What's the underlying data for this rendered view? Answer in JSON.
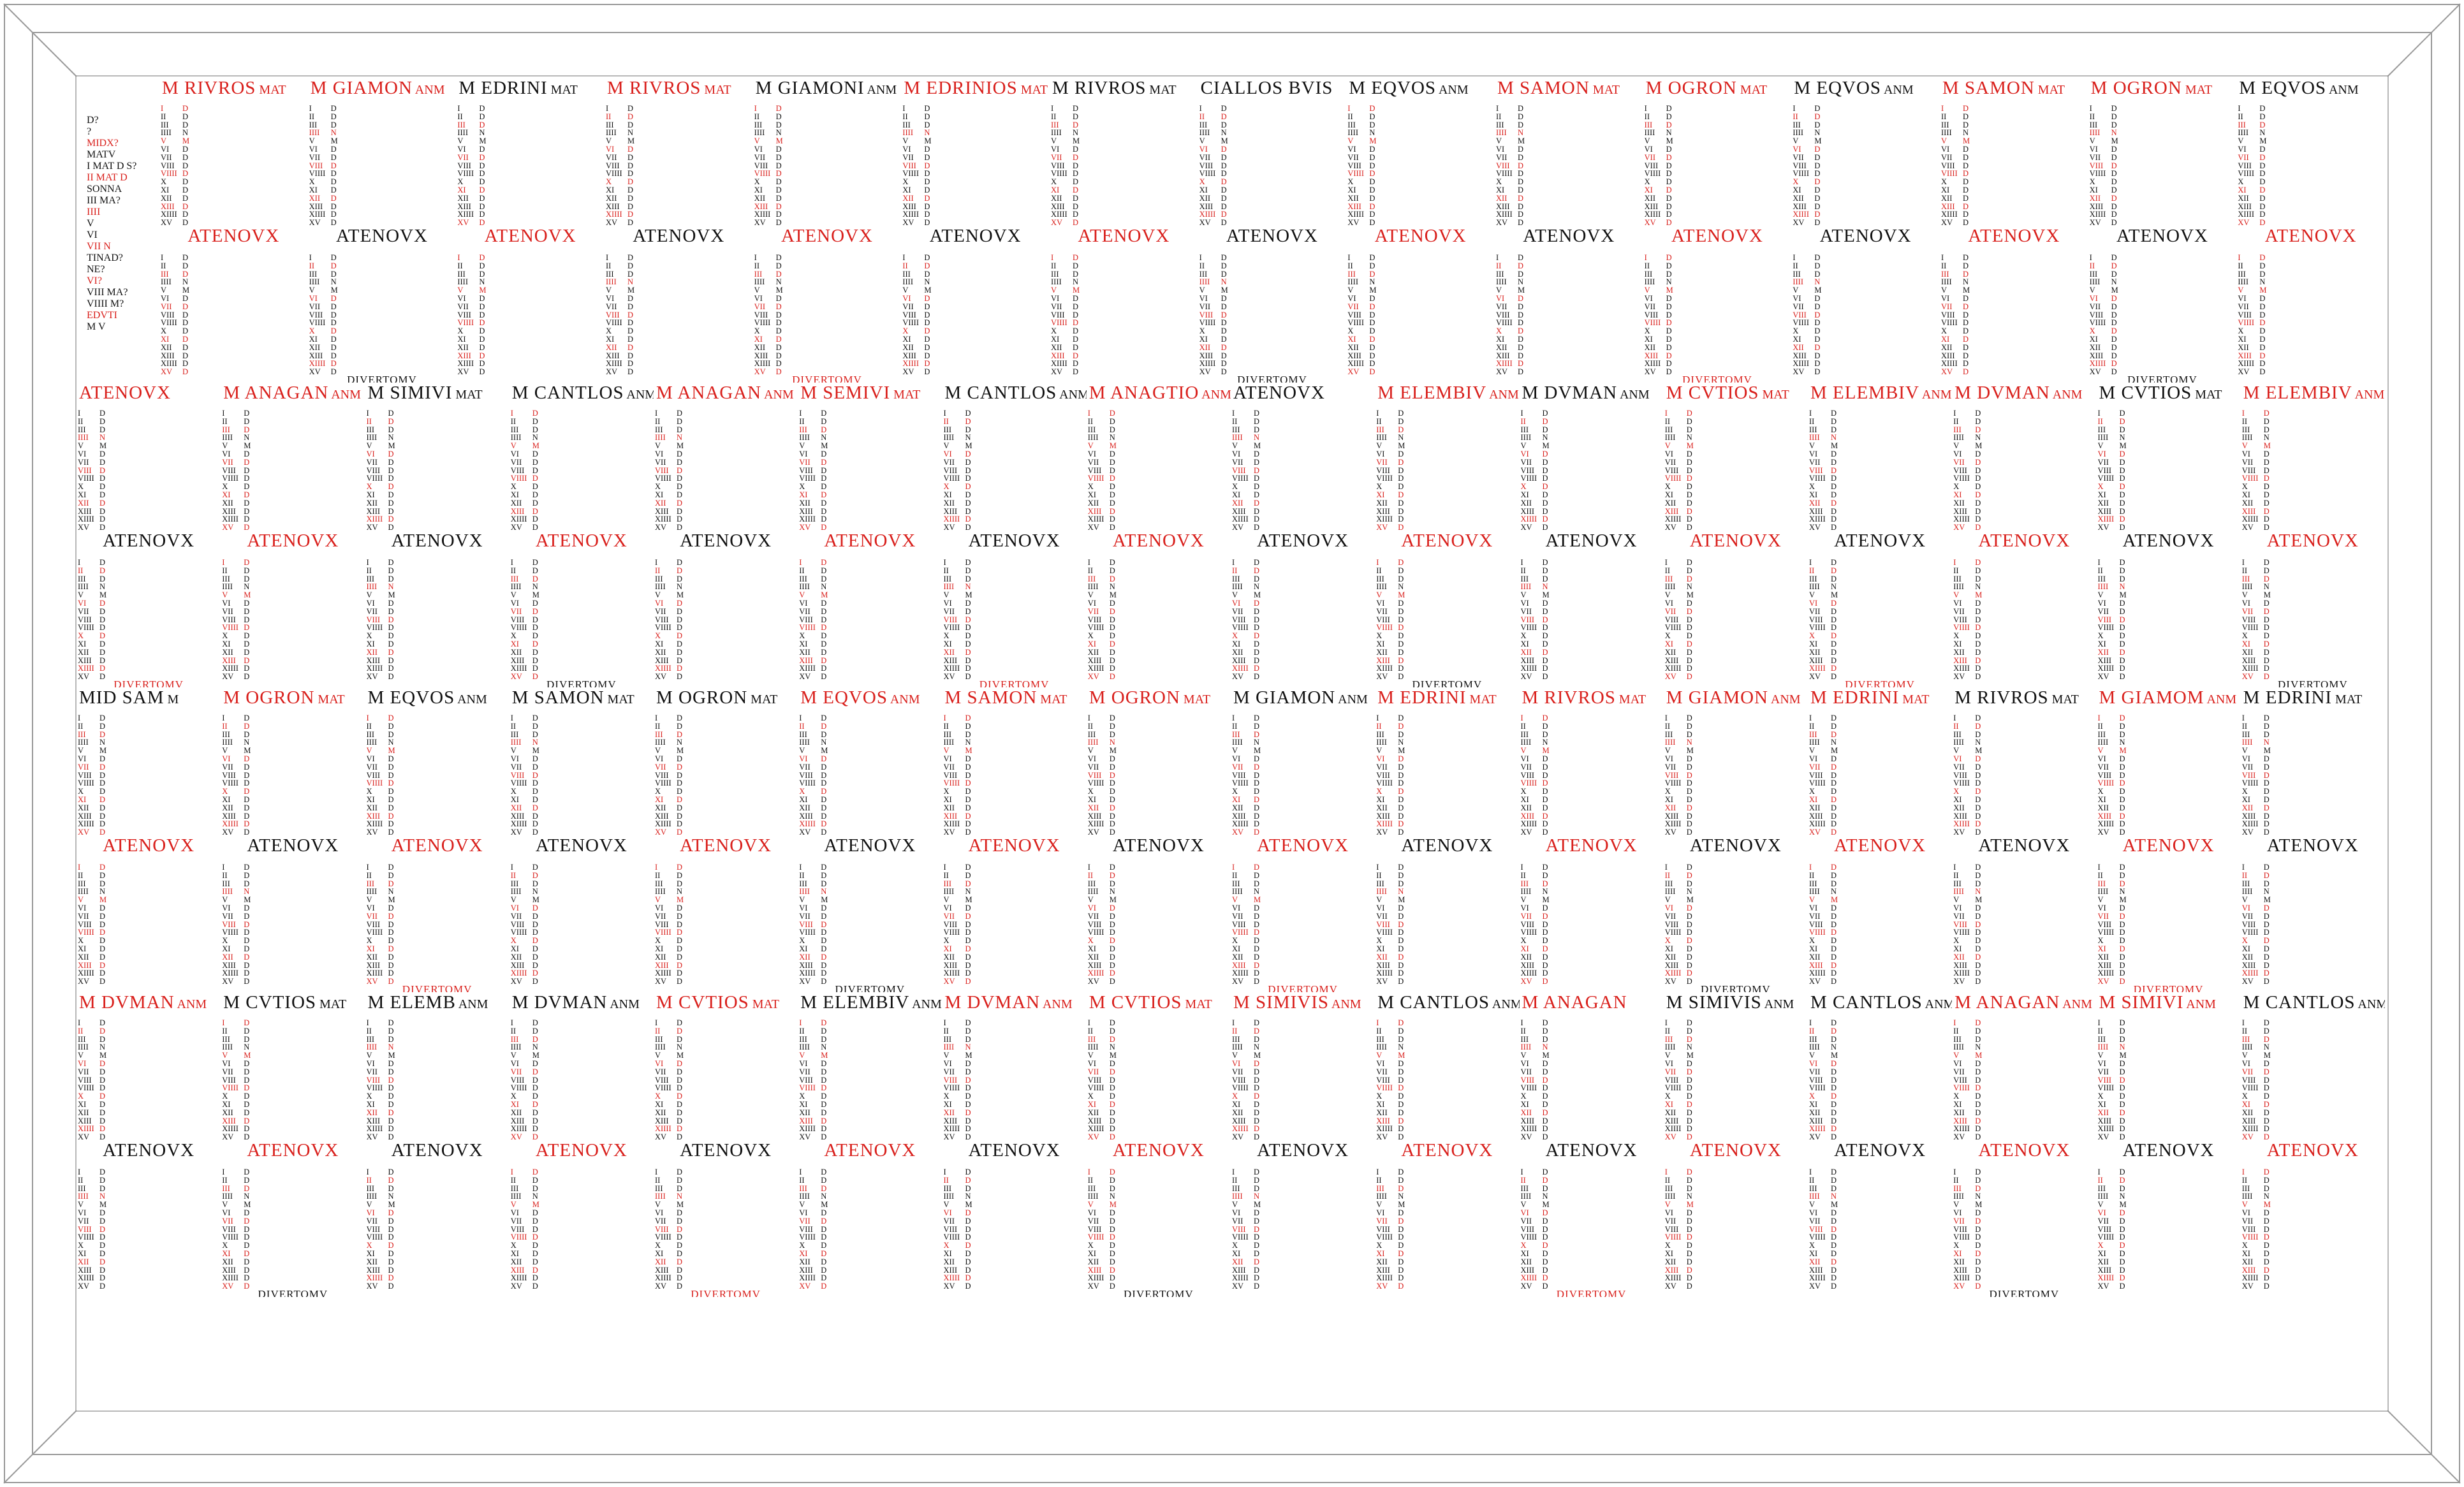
{
  "intro": {
    "lines": [
      "D?",
      "?",
      "MIDX?",
      "MATV",
      "I MAT D S?",
      "II MAT D",
      "SONNA",
      "III MA?",
      "IIII",
      "V",
      "VI",
      "VII N",
      "TINAD?",
      "NE?",
      "VI?",
      "VIII MA?",
      "VIIII M?",
      "EDVTI",
      "M V"
    ]
  },
  "colors": {
    "red": "#d9201c",
    "black": "#111111",
    "frame": "#9a9a9a",
    "background": "#ffffff"
  },
  "divider_label": "ATENOVX",
  "footer_label": "DIVERTOMV",
  "day_numerals": [
    "I",
    "II",
    "III",
    "IIII",
    "V",
    "VI",
    "VII",
    "VIII",
    "VIIII",
    "X",
    "XI",
    "XII",
    "XIII",
    "XIIII",
    "XV"
  ],
  "day_letters": [
    "D",
    "D",
    "D",
    "N",
    "M",
    "D",
    "D",
    "D",
    "D",
    "D",
    "D",
    "D",
    "D",
    "D",
    "D"
  ],
  "rows": [
    {
      "months": [
        {
          "title": "M RIVROS",
          "suffix": "MAT",
          "red": true
        },
        {
          "title": "M GIAMON",
          "suffix": "ANM",
          "red": true
        },
        {
          "title": "M EDRINI",
          "suffix": "MAT",
          "red": false
        },
        {
          "title": "M RIVROS",
          "suffix": "MAT",
          "red": true
        },
        {
          "title": "M GIAMONI",
          "suffix": "ANM",
          "red": false
        },
        {
          "title": "M EDRINIOS",
          "suffix": "MAT",
          "red": true
        },
        {
          "title": "M RIVROS",
          "suffix": "MAT",
          "red": false
        },
        {
          "title": "CIALLOS BVIS",
          "suffix": "",
          "red": false
        },
        {
          "title": "M EQVOS",
          "suffix": "ANM",
          "red": false
        },
        {
          "title": "M SAMON",
          "suffix": "MAT",
          "red": true
        },
        {
          "title": "M OGRON",
          "suffix": "MAT",
          "red": true
        },
        {
          "title": "M EQVOS",
          "suffix": "ANM",
          "red": false
        },
        {
          "title": "M SAMON",
          "suffix": "MAT",
          "red": true
        },
        {
          "title": "M OGRON",
          "suffix": "MAT",
          "red": true
        },
        {
          "title": "M EQVOS",
          "suffix": "ANM",
          "red": false
        }
      ]
    },
    {
      "months": [
        {
          "title": "ATENOVX",
          "suffix": "",
          "red": true
        },
        {
          "title": "M ANAGAN",
          "suffix": "ANM",
          "red": true
        },
        {
          "title": "M SIMIVI",
          "suffix": "MAT",
          "red": false
        },
        {
          "title": "M CANTLOS",
          "suffix": "ANM",
          "red": false
        },
        {
          "title": "M ANAGAN",
          "suffix": "ANM",
          "red": true
        },
        {
          "title": "M SEMIVI",
          "suffix": "MAT",
          "red": true
        },
        {
          "title": "M CANTLOS",
          "suffix": "ANM",
          "red": false
        },
        {
          "title": "M ANAGTIO",
          "suffix": "ANM",
          "red": true
        },
        {
          "title": "ATENOVX",
          "suffix": "",
          "red": false
        },
        {
          "title": "M ELEMBIV",
          "suffix": "ANM",
          "red": true
        },
        {
          "title": "M DVMAN",
          "suffix": "ANM",
          "red": false
        },
        {
          "title": "M CVTIOS",
          "suffix": "MAT",
          "red": true
        },
        {
          "title": "M ELEMBIV",
          "suffix": "ANM",
          "red": true
        },
        {
          "title": "M DVMAN",
          "suffix": "ANM",
          "red": true
        },
        {
          "title": "M CVTIOS",
          "suffix": "MAT",
          "red": false
        },
        {
          "title": "M ELEMBIV",
          "suffix": "ANM",
          "red": true
        }
      ]
    },
    {
      "months": [
        {
          "title": "MID SAM",
          "suffix": "M",
          "red": false
        },
        {
          "title": "M OGRON",
          "suffix": "MAT",
          "red": true
        },
        {
          "title": "M EQVOS",
          "suffix": "ANM",
          "red": false
        },
        {
          "title": "M SAMON",
          "suffix": "MAT",
          "red": false
        },
        {
          "title": "M OGRON",
          "suffix": "MAT",
          "red": false
        },
        {
          "title": "M EQVOS",
          "suffix": "ANM",
          "red": true
        },
        {
          "title": "M SAMON",
          "suffix": "MAT",
          "red": true
        },
        {
          "title": "M OGRON",
          "suffix": "MAT",
          "red": true
        },
        {
          "title": "M GIAMON",
          "suffix": "ANM",
          "red": false
        },
        {
          "title": "M EDRINI",
          "suffix": "MAT",
          "red": true
        },
        {
          "title": "M RIVROS",
          "suffix": "MAT",
          "red": true
        },
        {
          "title": "M GIAMON",
          "suffix": "ANM",
          "red": true
        },
        {
          "title": "M EDRINI",
          "suffix": "MAT",
          "red": true
        },
        {
          "title": "M RIVROS",
          "suffix": "MAT",
          "red": false
        },
        {
          "title": "M GIAMOM",
          "suffix": "ANM",
          "red": true
        },
        {
          "title": "M EDRINI",
          "suffix": "MAT",
          "red": false
        }
      ]
    },
    {
      "months": [
        {
          "title": "M DVMAN",
          "suffix": "ANM",
          "red": true
        },
        {
          "title": "M CVTIOS",
          "suffix": "MAT",
          "red": false
        },
        {
          "title": "M ELEMB",
          "suffix": "ANM",
          "red": false
        },
        {
          "title": "M DVMAN",
          "suffix": "ANM",
          "red": false
        },
        {
          "title": "M CVTIOS",
          "suffix": "MAT",
          "red": true
        },
        {
          "title": "M ELEMBIV",
          "suffix": "ANM",
          "red": false
        },
        {
          "title": "M DVMAN",
          "suffix": "ANM",
          "red": true
        },
        {
          "title": "M CVTIOS",
          "suffix": "MAT",
          "red": true
        },
        {
          "title": "M SIMIVIS",
          "suffix": "ANM",
          "red": true
        },
        {
          "title": "M CANTLOS",
          "suffix": "ANM",
          "red": false
        },
        {
          "title": "M ANAGAN",
          "suffix": "",
          "red": true
        },
        {
          "title": "M SIMIVIS",
          "suffix": "ANM",
          "red": false
        },
        {
          "title": "M CANTLOS",
          "suffix": "ANM",
          "red": false
        },
        {
          "title": "M ANAGAN",
          "suffix": "ANM",
          "red": true
        },
        {
          "title": "M SIMIVI",
          "suffix": "ANM",
          "red": true
        },
        {
          "title": "M CANTLOS",
          "suffix": "ANM",
          "red": false
        }
      ]
    }
  ],
  "frame_label": "calendar frame"
}
